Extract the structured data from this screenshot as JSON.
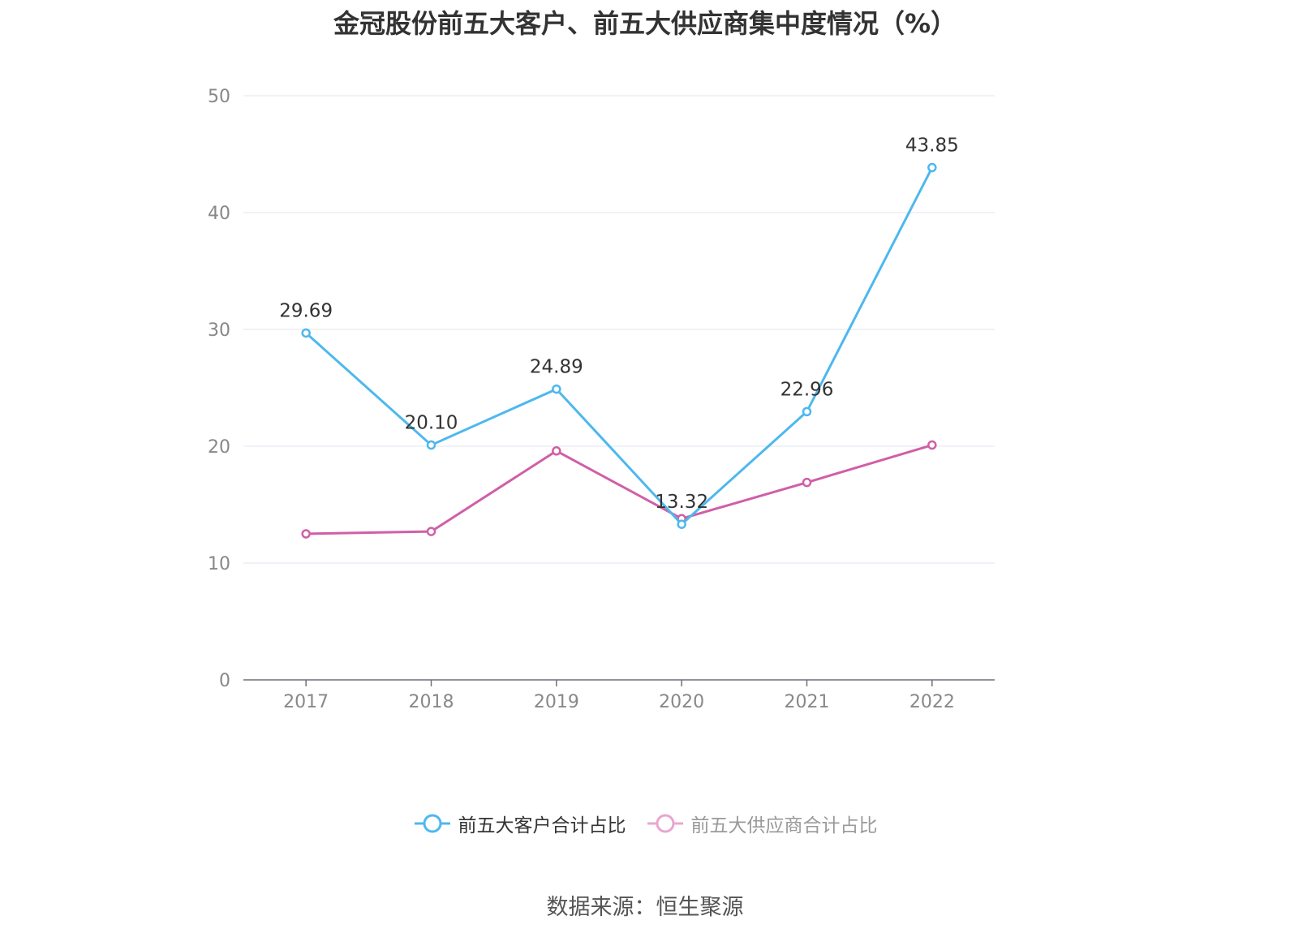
{
  "title": "金冠股份前五大客户、前五大供应商集中度情况（%）",
  "source": "数据来源：恒生聚源",
  "colors": {
    "customers": "#4db8ee",
    "suppliers": "#d05fa7",
    "suppliers_legend": "#e8a6cf",
    "grid": "#dfe4f0",
    "axis": "#6e7079"
  },
  "chart_data": {
    "type": "line",
    "title": "金冠股份前五大客户、前五大供应商集中度情况（%）",
    "x": [
      "2017",
      "2018",
      "2019",
      "2020",
      "2021",
      "2022"
    ],
    "ylim": [
      0,
      50
    ],
    "yticks": [
      0,
      10,
      20,
      30,
      40,
      50
    ],
    "grid": true,
    "legend_position": "bottom",
    "series": [
      {
        "name": "前五大客户合计占比",
        "values": [
          29.69,
          20.1,
          24.89,
          13.32,
          22.96,
          43.85
        ],
        "labels": [
          "29.69",
          "20.10",
          "24.89",
          "13.32",
          "22.96",
          "43.85"
        ]
      },
      {
        "name": "前五大供应商合计占比",
        "values": [
          12.5,
          12.7,
          19.6,
          13.8,
          16.9,
          20.1
        ]
      }
    ]
  }
}
